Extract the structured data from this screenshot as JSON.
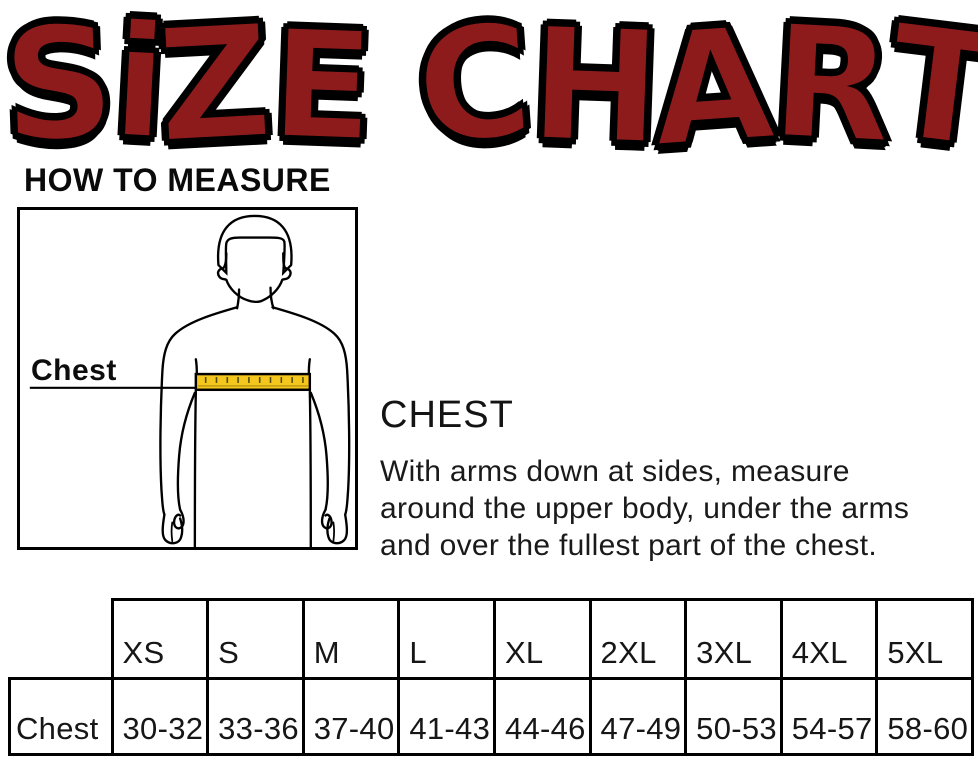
{
  "title": "SiZE CHART",
  "how_to_measure_heading": "HOW TO MEASURE",
  "measure_box": {
    "label": "Chest"
  },
  "chest_section": {
    "heading": "CHEST",
    "lines": [
      "With arms down at sides, measure",
      "around the upper body, under the arms",
      "and over the fullest part of the chest."
    ]
  },
  "size_table": {
    "row_label": "Chest",
    "sizes": [
      "XS",
      "S",
      "M",
      "L",
      "XL",
      "2XL",
      "3XL",
      "4XL",
      "5XL"
    ],
    "chest_values": [
      "30-32",
      "33-36",
      "37-40",
      "41-43",
      "44-46",
      "47-49",
      "50-53",
      "54-57",
      "58-60"
    ]
  },
  "chart_data": {
    "type": "table",
    "title": "SIZE CHART",
    "columns": [
      "",
      "XS",
      "S",
      "M",
      "L",
      "XL",
      "2XL",
      "3XL",
      "4XL",
      "5XL"
    ],
    "rows": [
      {
        "label": "Chest",
        "values": [
          "30-32",
          "33-36",
          "37-40",
          "41-43",
          "44-46",
          "47-49",
          "50-53",
          "54-57",
          "58-60"
        ]
      }
    ]
  },
  "colors": {
    "title_red": "#8e1b1b",
    "outline_black": "#000000",
    "tape_yellow": "#f3c71d"
  }
}
